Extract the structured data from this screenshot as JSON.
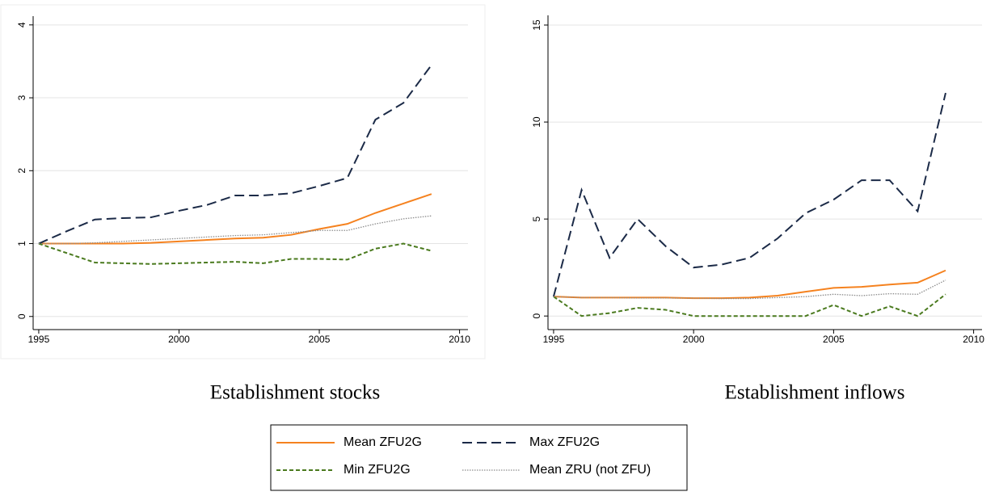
{
  "chart_data": [
    {
      "type": "line",
      "title": "Establishment stocks",
      "x": [
        1995,
        1996,
        1997,
        1998,
        1999,
        2000,
        2001,
        2002,
        2003,
        2004,
        2005,
        2006,
        2007,
        2008,
        2009
      ],
      "xlim": [
        1994.8,
        2010.3
      ],
      "xticks": [
        1995,
        2000,
        2005,
        2010
      ],
      "ylim": [
        -0.18,
        4.12
      ],
      "yticks": [
        0,
        1,
        2,
        3,
        4
      ],
      "grid": true,
      "series": [
        {
          "name": "Mean ZFU2G",
          "color": "#f5821f",
          "values": [
            1.0,
            1.0,
            1.0,
            1.0,
            1.01,
            1.03,
            1.05,
            1.07,
            1.08,
            1.12,
            1.2,
            1.27,
            1.42,
            1.55,
            1.68
          ]
        },
        {
          "name": "Max ZFU2G",
          "color": "#1b2a47",
          "values": [
            1.0,
            1.17,
            1.33,
            1.35,
            1.36,
            1.45,
            1.53,
            1.66,
            1.66,
            1.69,
            1.79,
            1.9,
            2.7,
            2.93,
            3.45
          ]
        },
        {
          "name": "Min ZFU2G",
          "color": "#4a7a1e",
          "values": [
            1.0,
            0.87,
            0.74,
            0.73,
            0.72,
            0.73,
            0.74,
            0.75,
            0.73,
            0.79,
            0.79,
            0.78,
            0.93,
            1.0,
            0.9
          ]
        },
        {
          "name": "Mean ZRU (not ZFU)",
          "color": "#8c8c8c",
          "values": [
            1.0,
            1.0,
            1.01,
            1.03,
            1.05,
            1.07,
            1.09,
            1.11,
            1.12,
            1.15,
            1.18,
            1.18,
            1.27,
            1.34,
            1.38
          ]
        }
      ]
    },
    {
      "type": "line",
      "title": "Establishment inflows",
      "x": [
        1995,
        1996,
        1997,
        1998,
        1999,
        2000,
        2001,
        2002,
        2003,
        2004,
        2005,
        2006,
        2007,
        2008,
        2009
      ],
      "xlim": [
        1994.8,
        2010.3
      ],
      "xticks": [
        1995,
        2000,
        2005,
        2010
      ],
      "ylim": [
        -0.7,
        15.5
      ],
      "yticks": [
        0,
        5,
        10,
        15
      ],
      "grid": true,
      "series": [
        {
          "name": "Mean ZFU2G",
          "color": "#f5821f",
          "values": [
            1.0,
            0.95,
            0.95,
            0.95,
            0.95,
            0.92,
            0.92,
            0.95,
            1.05,
            1.25,
            1.45,
            1.5,
            1.62,
            1.72,
            2.35
          ]
        },
        {
          "name": "Max ZFU2G",
          "color": "#1b2a47",
          "values": [
            1.0,
            6.5,
            3.0,
            5.0,
            3.6,
            2.5,
            2.65,
            3.0,
            4.0,
            5.3,
            6.0,
            7.0,
            7.0,
            5.4,
            11.5
          ]
        },
        {
          "name": "Min ZFU2G",
          "color": "#4a7a1e",
          "values": [
            1.0,
            0.0,
            0.15,
            0.42,
            0.32,
            0.0,
            0.0,
            0.0,
            0.0,
            0.0,
            0.57,
            0.0,
            0.5,
            0.0,
            1.12
          ]
        },
        {
          "name": "Mean ZRU (not ZFU)",
          "color": "#8c8c8c",
          "values": [
            1.0,
            0.95,
            0.95,
            0.93,
            0.93,
            0.92,
            0.9,
            0.9,
            0.95,
            1.0,
            1.12,
            1.05,
            1.15,
            1.12,
            1.85
          ]
        }
      ]
    }
  ]
}
